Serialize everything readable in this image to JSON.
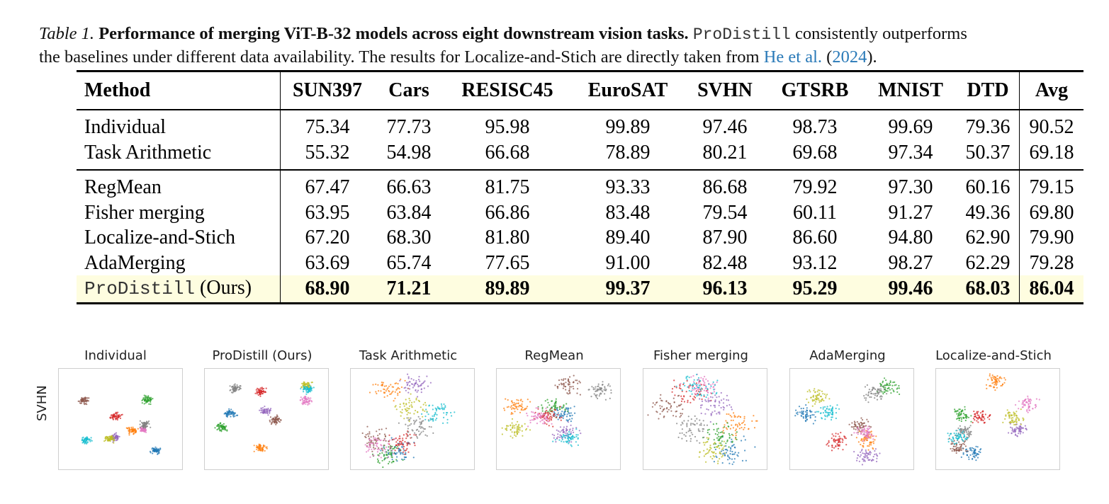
{
  "caption": {
    "label": "Table 1.",
    "title": "Performance of merging ViT-B-32 models across eight downstream vision tasks.",
    "method_name": "ProDistill",
    "text1": " consistently outperforms",
    "text2": "the baselines under different data availability. The results for Localize-and-Stich are directly taken from ",
    "cite_authors": "He et al.",
    "cite_open": " (",
    "cite_year": "2024",
    "cite_close": ")."
  },
  "table": {
    "headers": [
      "Method",
      "SUN397",
      "Cars",
      "RESISC45",
      "EuroSAT",
      "SVHN",
      "GTSRB",
      "MNIST",
      "DTD",
      "Avg"
    ],
    "rows": [
      {
        "method": "Individual",
        "values": [
          "75.34",
          "77.73",
          "95.98",
          "99.89",
          "97.46",
          "98.73",
          "99.69",
          "79.36"
        ],
        "avg": "90.52"
      },
      {
        "method": "Task Arithmetic",
        "values": [
          "55.32",
          "54.98",
          "66.68",
          "78.89",
          "80.21",
          "69.68",
          "97.34",
          "50.37"
        ],
        "avg": "69.18"
      },
      {
        "method": "RegMean",
        "values": [
          "67.47",
          "66.63",
          "81.75",
          "93.33",
          "86.68",
          "79.92",
          "97.30",
          "60.16"
        ],
        "avg": "79.15"
      },
      {
        "method": "Fisher merging",
        "values": [
          "63.95",
          "63.84",
          "66.86",
          "83.48",
          "79.54",
          "60.11",
          "91.27",
          "49.36"
        ],
        "avg": "69.80"
      },
      {
        "method": "Localize-and-Stich",
        "values": [
          "67.20",
          "68.30",
          "81.80",
          "89.40",
          "87.90",
          "86.60",
          "94.80",
          "62.90"
        ],
        "avg": "79.90"
      },
      {
        "method": "AdaMerging",
        "values": [
          "63.69",
          "65.74",
          "77.65",
          "91.00",
          "82.48",
          "93.12",
          "98.27",
          "62.29"
        ],
        "avg": "79.28"
      },
      {
        "method_mono": "ProDistill",
        "method_suffix": " (Ours)",
        "values": [
          "68.90",
          "71.21",
          "89.89",
          "99.37",
          "96.13",
          "95.29",
          "99.46",
          "68.03"
        ],
        "avg": "86.04"
      }
    ]
  },
  "figure": {
    "row_label": "SVHN",
    "panels": [
      {
        "title": "Individual"
      },
      {
        "title": "ProDistill (Ours)"
      },
      {
        "title": "Task Arithmetic"
      },
      {
        "title": "RegMean"
      },
      {
        "title": "Fisher merging"
      },
      {
        "title": "AdaMerging"
      },
      {
        "title": "Localize-and-Stich"
      }
    ],
    "class_colors": [
      "#1f77b4",
      "#ff7f0e",
      "#2ca02c",
      "#d62728",
      "#9467bd",
      "#8c564b",
      "#e377c2",
      "#7f7f7f",
      "#bcbd22",
      "#17becf"
    ]
  }
}
